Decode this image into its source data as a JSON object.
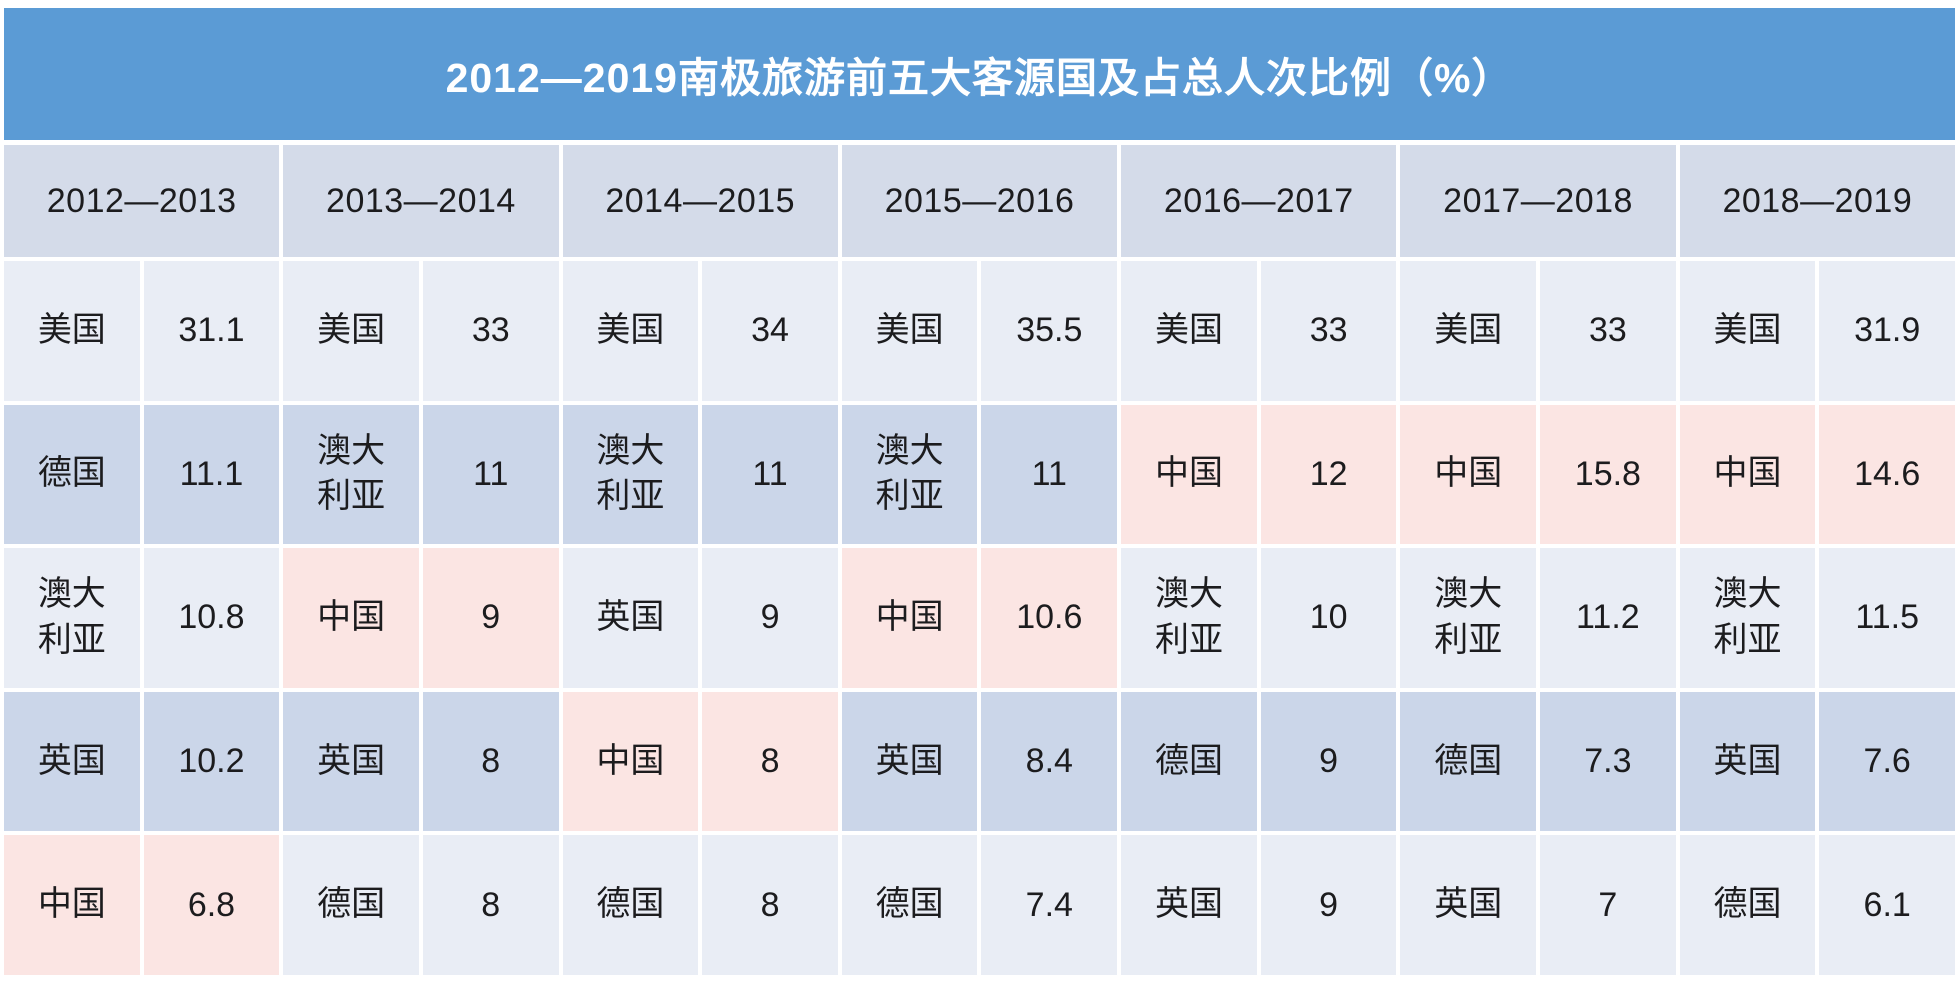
{
  "title": "2012—2019南极旅游前五大客源国及占总人次比例（%）",
  "highlight_country": "中国",
  "colors": {
    "title_bar_bg": "#5b9bd5",
    "title_text": "#ffffff",
    "header_row_bg": "#d4dbe9",
    "row_light_bg": "#e9edf5",
    "row_dark_bg": "#cbd6e9",
    "highlight_bg": "#fbe5e3",
    "cell_text": "#1c1c1e",
    "grid_line": "#ffffff"
  },
  "chart_data": {
    "type": "table",
    "title": "2012—2019南极旅游前五大客源国及占总人次比例（%）",
    "unit": "%",
    "seasons": [
      "2012—2013",
      "2013—2014",
      "2014—2015",
      "2015—2016",
      "2016—2017",
      "2017—2018",
      "2018—2019"
    ],
    "columns": [
      {
        "season": "2012—2013",
        "entries": [
          {
            "country": "美国",
            "value": "31.1"
          },
          {
            "country": "德国",
            "value": "11.1"
          },
          {
            "country": "澳大利亚",
            "value": "10.8"
          },
          {
            "country": "英国",
            "value": "10.2"
          },
          {
            "country": "中国",
            "value": "6.8"
          }
        ]
      },
      {
        "season": "2013—2014",
        "entries": [
          {
            "country": "美国",
            "value": "33"
          },
          {
            "country": "澳大利亚",
            "value": "11"
          },
          {
            "country": "中国",
            "value": "9"
          },
          {
            "country": "英国",
            "value": "8"
          },
          {
            "country": "德国",
            "value": "8"
          }
        ]
      },
      {
        "season": "2014—2015",
        "entries": [
          {
            "country": "美国",
            "value": "34"
          },
          {
            "country": "澳大利亚",
            "value": "11"
          },
          {
            "country": "英国",
            "value": "9"
          },
          {
            "country": "中国",
            "value": "8"
          },
          {
            "country": "德国",
            "value": "8"
          }
        ]
      },
      {
        "season": "2015—2016",
        "entries": [
          {
            "country": "美国",
            "value": "35.5"
          },
          {
            "country": "澳大利亚",
            "value": "11"
          },
          {
            "country": "中国",
            "value": "10.6"
          },
          {
            "country": "英国",
            "value": "8.4"
          },
          {
            "country": "德国",
            "value": "7.4"
          }
        ]
      },
      {
        "season": "2016—2017",
        "entries": [
          {
            "country": "美国",
            "value": "33"
          },
          {
            "country": "中国",
            "value": "12"
          },
          {
            "country": "澳大利亚",
            "value": "10"
          },
          {
            "country": "德国",
            "value": "9"
          },
          {
            "country": "英国",
            "value": "9"
          }
        ]
      },
      {
        "season": "2017—2018",
        "entries": [
          {
            "country": "美国",
            "value": "33"
          },
          {
            "country": "中国",
            "value": "15.8"
          },
          {
            "country": "澳大利亚",
            "value": "11.2"
          },
          {
            "country": "德国",
            "value": "7.3"
          },
          {
            "country": "英国",
            "value": "7"
          }
        ]
      },
      {
        "season": "2018—2019",
        "entries": [
          {
            "country": "美国",
            "value": "31.9"
          },
          {
            "country": "中国",
            "value": "14.6"
          },
          {
            "country": "澳大利亚",
            "value": "11.5"
          },
          {
            "country": "英国",
            "value": "7.6"
          },
          {
            "country": "德国",
            "value": "6.1"
          }
        ]
      }
    ]
  }
}
